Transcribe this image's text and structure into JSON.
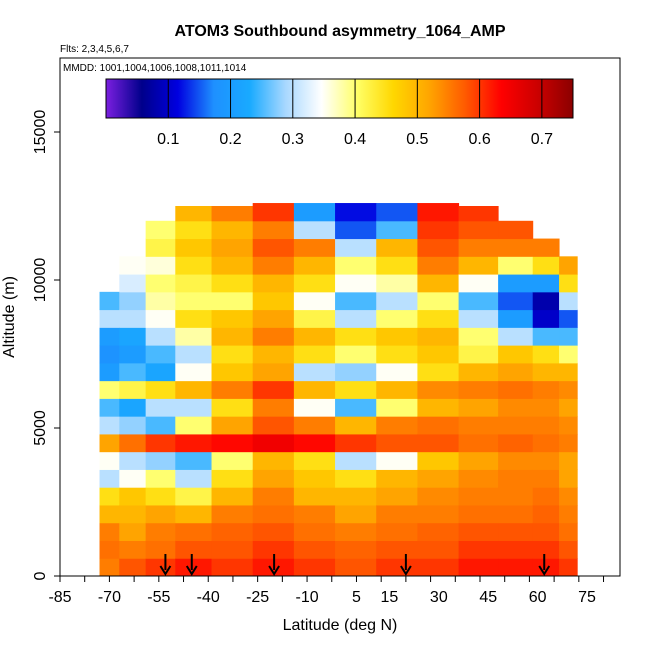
{
  "chart_data": {
    "type": "heatmap",
    "title": "ATOM3 Southbound asymmetry_1064_AMP",
    "flights_note": "Flts: 2,3,4,5,6,7",
    "dates_note": "MMDD: 1001,1004,1006,1008,1011,1014",
    "xlabel": "Latitude (deg N)",
    "ylabel": "Altitude (m)",
    "xlim": [
      -85,
      85
    ],
    "ylim": [
      0,
      17500
    ],
    "x_ticks": [
      -85,
      -70,
      -55,
      -40,
      -25,
      -10,
      5,
      15,
      30,
      45,
      60,
      75
    ],
    "x_tick_labels": [
      "-85",
      "-70",
      "-55",
      "-40",
      "-25",
      "-10",
      "5",
      "15",
      "30",
      "45",
      "60",
      "75"
    ],
    "y_ticks": [
      0,
      5000,
      10000,
      15000
    ],
    "y_tick_labels": [
      "0",
      "5000",
      "10000",
      "15000"
    ],
    "colorbar": {
      "range": [
        0.0,
        0.75
      ],
      "ticks": [
        0.1,
        0.2,
        0.3,
        0.4,
        0.5,
        0.6,
        0.7
      ],
      "tick_labels": [
        "0.1",
        "0.2",
        "0.3",
        "0.4",
        "0.5",
        "0.6",
        "0.7"
      ],
      "colors": [
        "#7b1fe0",
        "#00008b",
        "#0000e0",
        "#1e90ff",
        "#19aaff",
        "#a8d8ff",
        "#ffffff",
        "#ffff66",
        "#ffd700",
        "#ffa500",
        "#ff5a00",
        "#ff0000",
        "#cc0000",
        "#8b0000"
      ]
    },
    "arrow_latitudes": [
      -53,
      -45,
      -20,
      20,
      62
    ],
    "profiles": [
      {
        "lat": -71,
        "zmax": 10000,
        "values": [
          0.55,
          0.56,
          0.55,
          0.5,
          0.45,
          0.3,
          0.35,
          0.52,
          0.3,
          0.25,
          0.4,
          0.2,
          0.18,
          0.2,
          0.3,
          0.25
        ]
      },
      {
        "lat": -63,
        "zmax": 11000,
        "values": [
          0.58,
          0.55,
          0.52,
          0.5,
          0.48,
          0.35,
          0.3,
          0.56,
          0.28,
          0.22,
          0.42,
          0.25,
          0.2,
          0.22,
          0.3,
          0.28,
          0.32,
          0.35
        ]
      },
      {
        "lat": -55,
        "zmax": 12000,
        "values": [
          0.6,
          0.56,
          0.55,
          0.52,
          0.45,
          0.4,
          0.28,
          0.6,
          0.25,
          0.3,
          0.45,
          0.22,
          0.25,
          0.3,
          0.35,
          0.38,
          0.4,
          0.36,
          0.42,
          0.4
        ]
      },
      {
        "lat": -45,
        "zmax": 12500,
        "values": [
          0.62,
          0.58,
          0.56,
          0.5,
          0.42,
          0.3,
          0.25,
          0.62,
          0.4,
          0.3,
          0.5,
          0.35,
          0.3,
          0.38,
          0.45,
          0.4,
          0.42,
          0.45,
          0.48,
          0.45,
          0.5
        ]
      },
      {
        "lat": -33,
        "zmax": 12500,
        "values": [
          0.6,
          0.58,
          0.57,
          0.55,
          0.5,
          0.45,
          0.4,
          0.63,
          0.52,
          0.45,
          0.55,
          0.48,
          0.45,
          0.5,
          0.48,
          0.4,
          0.45,
          0.5,
          0.52,
          0.5,
          0.55
        ]
      },
      {
        "lat": -20,
        "zmax": 12800,
        "values": [
          0.62,
          0.6,
          0.58,
          0.56,
          0.55,
          0.52,
          0.5,
          0.65,
          0.58,
          0.55,
          0.6,
          0.52,
          0.5,
          0.55,
          0.52,
          0.48,
          0.5,
          0.55,
          0.58,
          0.55,
          0.6
        ]
      },
      {
        "lat": -8,
        "zmax": 12900,
        "values": [
          0.6,
          0.58,
          0.56,
          0.55,
          0.5,
          0.48,
          0.45,
          0.63,
          0.55,
          0.35,
          0.5,
          0.3,
          0.45,
          0.5,
          0.42,
          0.35,
          0.45,
          0.5,
          0.55,
          0.3,
          0.2
        ]
      },
      {
        "lat": 5,
        "zmax": 12900,
        "values": [
          0.58,
          0.57,
          0.55,
          0.52,
          0.5,
          0.45,
          0.3,
          0.6,
          0.5,
          0.25,
          0.45,
          0.28,
          0.4,
          0.45,
          0.3,
          0.25,
          0.35,
          0.4,
          0.3,
          0.15,
          0.12
        ]
      },
      {
        "lat": 17,
        "zmax": 12900,
        "values": [
          0.6,
          0.58,
          0.56,
          0.55,
          0.52,
          0.5,
          0.35,
          0.58,
          0.55,
          0.4,
          0.5,
          0.35,
          0.45,
          0.48,
          0.4,
          0.3,
          0.38,
          0.45,
          0.5,
          0.25,
          0.15
        ]
      },
      {
        "lat": 30,
        "zmax": 12800,
        "values": [
          0.6,
          0.58,
          0.57,
          0.55,
          0.54,
          0.52,
          0.48,
          0.58,
          0.56,
          0.5,
          0.54,
          0.45,
          0.48,
          0.5,
          0.45,
          0.4,
          0.5,
          0.55,
          0.58,
          0.6,
          0.62
        ]
      },
      {
        "lat": 42,
        "zmax": 12500,
        "values": [
          0.62,
          0.6,
          0.58,
          0.56,
          0.55,
          0.54,
          0.52,
          0.56,
          0.55,
          0.52,
          0.55,
          0.5,
          0.42,
          0.4,
          0.3,
          0.25,
          0.35,
          0.5,
          0.55,
          0.58,
          0.6
        ]
      },
      {
        "lat": 54,
        "zmax": 12300,
        "values": [
          0.62,
          0.6,
          0.58,
          0.56,
          0.55,
          0.55,
          0.54,
          0.57,
          0.55,
          0.54,
          0.56,
          0.52,
          0.48,
          0.3,
          0.2,
          0.15,
          0.2,
          0.4,
          0.55,
          0.58
        ]
      },
      {
        "lat": 63,
        "zmax": 12000,
        "values": [
          0.62,
          0.6,
          0.58,
          0.57,
          0.56,
          0.55,
          0.54,
          0.56,
          0.55,
          0.54,
          0.55,
          0.5,
          0.45,
          0.25,
          0.1,
          0.08,
          0.2,
          0.45,
          0.55
        ]
      },
      {
        "lat": 70,
        "zmax": 11500,
        "values": [
          0.6,
          0.58,
          0.56,
          0.55,
          0.54,
          0.52,
          0.52,
          0.55,
          0.54,
          0.52,
          0.54,
          0.5,
          0.4,
          0.25,
          0.15,
          0.3,
          0.45,
          0.52
        ]
      }
    ]
  }
}
